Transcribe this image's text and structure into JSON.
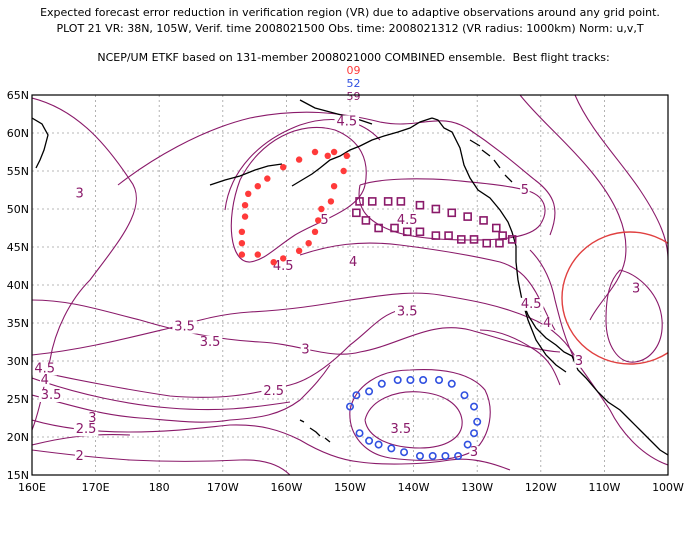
{
  "title": {
    "line1": "Expected forecast error reduction in verification region (VR) due to adaptive observations around any grid point.",
    "line2": "PLOT 21 VR: 38N, 105W, Verif. time 2008021500 Obs. time: 2008021312 (VR radius: 1000km) Norm: u,v,T",
    "line3_prefix": "NCEP/UM ETKF based on 131-member 2008021000 COMBINED ensemble.  Best flight tracks:",
    "track_ids": [
      "09",
      "52",
      "59"
    ]
  },
  "colors": {
    "contour": "#8a1a6a",
    "track_09": "#ff3a3a",
    "track_52": "#3050e0",
    "track_59": "#8a1a6a",
    "verification_circle": "#e04040",
    "coast": "#000000",
    "grid": "#a0a0a0"
  },
  "axes": {
    "lat_labels": [
      "65N",
      "60N",
      "55N",
      "50N",
      "45N",
      "40N",
      "35N",
      "30N",
      "25N",
      "20N",
      "15N"
    ],
    "lon_labels": [
      "160E",
      "170E",
      "180",
      "170W",
      "160W",
      "150W",
      "140W",
      "130W",
      "120W",
      "110W",
      "100W"
    ]
  },
  "contour_labels": [
    {
      "text": "4.5",
      "lon": -150.5,
      "lat": 61.0
    },
    {
      "text": "3",
      "lon": 167.5,
      "lat": 51.5
    },
    {
      "text": "5",
      "lon": -154.0,
      "lat": 48.0
    },
    {
      "text": "4.5",
      "lon": -141.0,
      "lat": 48.0
    },
    {
      "text": "5",
      "lon": -122.5,
      "lat": 52.0
    },
    {
      "text": "4.5",
      "lon": -160.5,
      "lat": 42.0
    },
    {
      "text": "4",
      "lon": -149.5,
      "lat": 42.5
    },
    {
      "text": "3.5",
      "lon": -141.0,
      "lat": 36.0
    },
    {
      "text": "4.5",
      "lon": -121.5,
      "lat": 37.0
    },
    {
      "text": "4",
      "lon": -119.0,
      "lat": 34.5
    },
    {
      "text": "3",
      "lon": -105.0,
      "lat": 39.0
    },
    {
      "text": "3.5",
      "lon": -176.0,
      "lat": 34.0
    },
    {
      "text": "3.5",
      "lon": -172.0,
      "lat": 32.0
    },
    {
      "text": "3",
      "lon": -157.0,
      "lat": 31.0
    },
    {
      "text": "4.5",
      "lon": 162.0,
      "lat": 28.5
    },
    {
      "text": "4",
      "lon": 162.0,
      "lat": 27.0
    },
    {
      "text": "3.5",
      "lon": 163.0,
      "lat": 25.0
    },
    {
      "text": "3",
      "lon": -114.0,
      "lat": 29.5
    },
    {
      "text": "2.5",
      "lon": -162.0,
      "lat": 25.5
    },
    {
      "text": "3",
      "lon": 169.5,
      "lat": 22.0
    },
    {
      "text": "2.5",
      "lon": 168.5,
      "lat": 20.5
    },
    {
      "text": "2",
      "lon": 167.5,
      "lat": 17.0
    },
    {
      "text": "3.5",
      "lon": -142.0,
      "lat": 20.5
    },
    {
      "text": "3",
      "lon": -130.5,
      "lat": 17.5
    }
  ],
  "tracks": [
    {
      "id": "09",
      "marker": "dot",
      "points": [
        [
          -155.5,
          57.5
        ],
        [
          -153.5,
          57.0
        ],
        [
          -152.5,
          57.5
        ],
        [
          -158.0,
          56.5
        ],
        [
          -160.5,
          55.5
        ],
        [
          -163.0,
          54.0
        ],
        [
          -164.5,
          53.0
        ],
        [
          -166.0,
          52.0
        ],
        [
          -166.5,
          50.5
        ],
        [
          -166.5,
          49.0
        ],
        [
          -167.0,
          47.0
        ],
        [
          -167.0,
          45.5
        ],
        [
          -167.0,
          44.0
        ],
        [
          -164.5,
          44.0
        ],
        [
          -162.0,
          43.0
        ],
        [
          -160.5,
          43.5
        ],
        [
          -158.0,
          44.5
        ],
        [
          -156.5,
          45.5
        ],
        [
          -155.5,
          47.0
        ],
        [
          -155.0,
          48.5
        ],
        [
          -154.5,
          50.0
        ],
        [
          -153.0,
          51.0
        ],
        [
          -152.5,
          53.0
        ],
        [
          -151.0,
          55.0
        ],
        [
          -150.5,
          57.0
        ]
      ]
    },
    {
      "id": "59",
      "marker": "square",
      "points": [
        [
          -148.5,
          51.0
        ],
        [
          -146.5,
          51.0
        ],
        [
          -144.0,
          51.0
        ],
        [
          -142.0,
          51.0
        ],
        [
          -139.0,
          50.5
        ],
        [
          -136.5,
          50.0
        ],
        [
          -134.0,
          49.5
        ],
        [
          -131.5,
          49.0
        ],
        [
          -129.0,
          48.5
        ],
        [
          -127.0,
          47.5
        ],
        [
          -126.0,
          46.5
        ],
        [
          -124.5,
          46.0
        ],
        [
          -126.5,
          45.5
        ],
        [
          -128.5,
          45.5
        ],
        [
          -130.5,
          46.0
        ],
        [
          -132.5,
          46.0
        ],
        [
          -134.5,
          46.5
        ],
        [
          -136.5,
          46.5
        ],
        [
          -139.0,
          47.0
        ],
        [
          -141.0,
          47.0
        ],
        [
          -143.0,
          47.5
        ],
        [
          -145.5,
          47.5
        ],
        [
          -147.5,
          48.5
        ],
        [
          -149.0,
          49.5
        ]
      ]
    },
    {
      "id": "52",
      "marker": "circle",
      "points": [
        [
          -150.0,
          24.0
        ],
        [
          -149.0,
          25.5
        ],
        [
          -147.0,
          26.0
        ],
        [
          -145.0,
          27.0
        ],
        [
          -142.5,
          27.5
        ],
        [
          -140.5,
          27.5
        ],
        [
          -138.5,
          27.5
        ],
        [
          -136.0,
          27.5
        ],
        [
          -134.0,
          27.0
        ],
        [
          -132.0,
          25.5
        ],
        [
          -130.5,
          24.0
        ],
        [
          -130.0,
          22.0
        ],
        [
          -130.5,
          20.5
        ],
        [
          -131.5,
          19.0
        ],
        [
          -133.0,
          17.5
        ],
        [
          -135.0,
          17.5
        ],
        [
          -137.0,
          17.5
        ],
        [
          -139.0,
          17.5
        ],
        [
          -141.5,
          18.0
        ],
        [
          -143.5,
          18.5
        ],
        [
          -145.5,
          19.0
        ],
        [
          -147.0,
          19.5
        ],
        [
          -148.5,
          20.5
        ]
      ]
    }
  ]
}
